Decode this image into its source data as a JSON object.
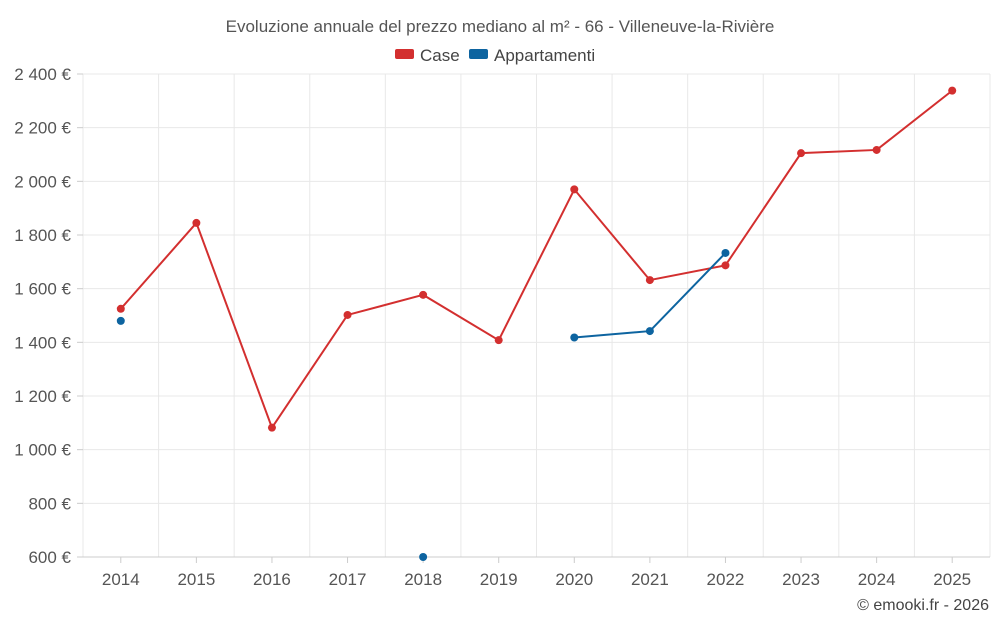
{
  "chart_data": {
    "type": "line",
    "title": "Evoluzione annuale del prezzo mediano al m² - 66 - Villeneuve-la-Rivière",
    "categories": [
      "2014",
      "2015",
      "2016",
      "2017",
      "2018",
      "2019",
      "2020",
      "2021",
      "2022",
      "2023",
      "2024",
      "2025"
    ],
    "ylim": [
      600,
      2400
    ],
    "yticks": [
      600,
      800,
      1000,
      1200,
      1400,
      1600,
      1800,
      2000,
      2200,
      2400
    ],
    "ytick_labels": [
      "600 €",
      "800 €",
      "1 000 €",
      "1 200 €",
      "1 400 €",
      "1 600 €",
      "1 800 €",
      "2 000 €",
      "2 200 €",
      "2 400 €"
    ],
    "series": [
      {
        "name": "Case",
        "color": "#d32f2f",
        "values": [
          1525,
          1845,
          1082,
          1502,
          1577,
          1408,
          1970,
          1632,
          1687,
          2105,
          2117,
          2338
        ]
      },
      {
        "name": "Appartamenti",
        "color": "#0d64a0",
        "values": [
          1480,
          null,
          null,
          null,
          600,
          null,
          1418,
          1442,
          1733,
          null,
          null,
          null
        ]
      }
    ],
    "legend_position": "top-center",
    "grid": true
  },
  "credit": "© emooki.fr - 2026"
}
